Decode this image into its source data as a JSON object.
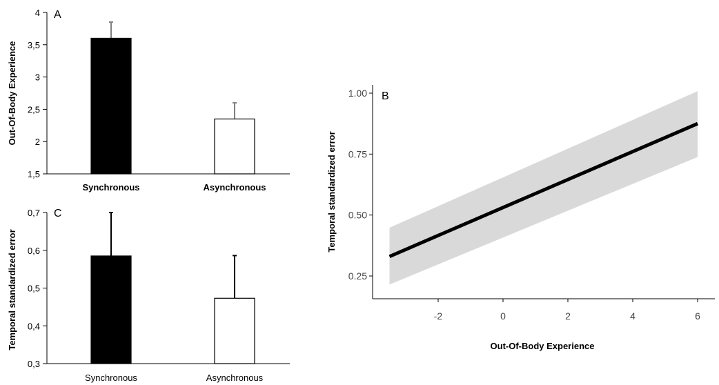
{
  "chart_data": [
    {
      "panel": "A",
      "type": "bar",
      "categories": [
        "Synchronous",
        "Asynchronous"
      ],
      "values": [
        3.6,
        2.35
      ],
      "errors": [
        0.25,
        0.25
      ],
      "colors": [
        "#000000",
        "#ffffff"
      ],
      "error_color": "#808080",
      "ylabel": "Out-Of-Body Experience",
      "ylim": [
        1.5,
        4
      ],
      "yticks": [
        1.5,
        2,
        2.5,
        3,
        3.5,
        4
      ],
      "ytick_labels": [
        "1,5",
        "2",
        "2,5",
        "3",
        "3,5",
        "4"
      ]
    },
    {
      "panel": "C",
      "type": "bar",
      "categories": [
        "Synchronous",
        "Asynchronous"
      ],
      "values": [
        0.585,
        0.473
      ],
      "errors": [
        0.115,
        0.113
      ],
      "colors": [
        "#000000",
        "#ffffff"
      ],
      "error_color": "#000000",
      "ylabel": "Temporal standardized error",
      "ylim": [
        0.3,
        0.7
      ],
      "yticks": [
        0.3,
        0.4,
        0.5,
        0.6,
        0.7
      ],
      "ytick_labels": [
        "0,3",
        "0,4",
        "0,5",
        "0,6",
        "0,7"
      ]
    },
    {
      "panel": "B",
      "type": "line",
      "x": [
        -3.5,
        6
      ],
      "y": [
        0.33,
        0.875
      ],
      "ci_lower": [
        0.215,
        0.738
      ],
      "ci_upper": [
        0.448,
        1.008
      ],
      "line_color": "#000000",
      "band_color": "#d9d9d9",
      "xlabel": "Out-Of-Body Experience",
      "ylabel": "Temporal standardized error",
      "xlim": [
        -3.5,
        6.5
      ],
      "ylim": [
        0.18,
        1.04
      ],
      "xticks": [
        -2,
        0,
        2,
        4,
        6
      ],
      "xtick_labels": [
        "-2",
        "0",
        "2",
        "4",
        "6"
      ],
      "yticks": [
        0.25,
        0.5,
        0.75,
        1.0
      ],
      "ytick_labels": [
        "0.25",
        "0.50",
        "0.75",
        "1.00"
      ],
      "grid": false
    }
  ]
}
